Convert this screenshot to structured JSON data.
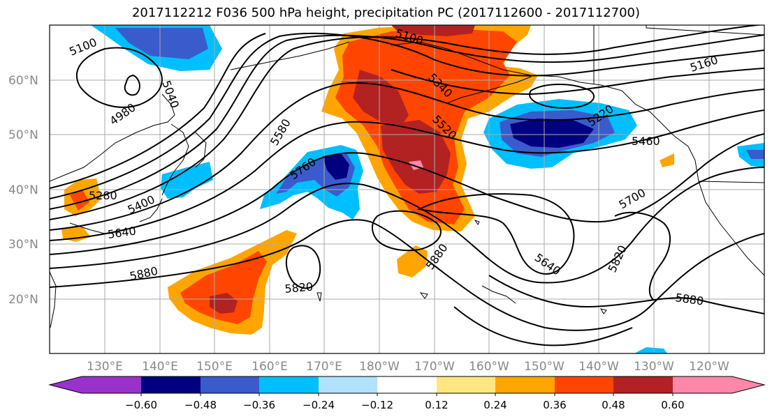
{
  "title": "2017112212 F036 500 hPa height, precipitation PC (2017112600 - 2017112700)",
  "lat_labels": [
    "60°N",
    "50°N",
    "40°N",
    "30°N",
    "20°N"
  ],
  "lon_labels": [
    "130°E",
    "140°E",
    "150°E",
    "160°E",
    "170°E",
    "180°W",
    "170°W",
    "160°W",
    "150°W",
    "140°W",
    "130°W",
    "120°W"
  ],
  "contour_labels": [
    "5100",
    "5040",
    "4980",
    "5100",
    "5340",
    "5520",
    "5580",
    "5760",
    "5280",
    "5400",
    "5640",
    "5880",
    "5820",
    "5880",
    "5640",
    "5700",
    "5820",
    "5880",
    "5220",
    "5460",
    "5160"
  ],
  "colorbar": {
    "colors": [
      "#9932CC",
      "#000080",
      "#3A5BCC",
      "#00BFFF",
      "#B0E2FF",
      "#FFFFFF",
      "#FFE680",
      "#FFA500",
      "#FF4500",
      "#B22222",
      "#FF88AA"
    ],
    "tick_labels": [
      "−0.60",
      "−0.48",
      "−0.36",
      "−0.24",
      "−0.12",
      "0.12",
      "0.24",
      "0.36",
      "0.48",
      "0.60"
    ]
  },
  "colors": {
    "grid": "#aaaaaa",
    "contour": "#000000",
    "coast": "#000000"
  }
}
